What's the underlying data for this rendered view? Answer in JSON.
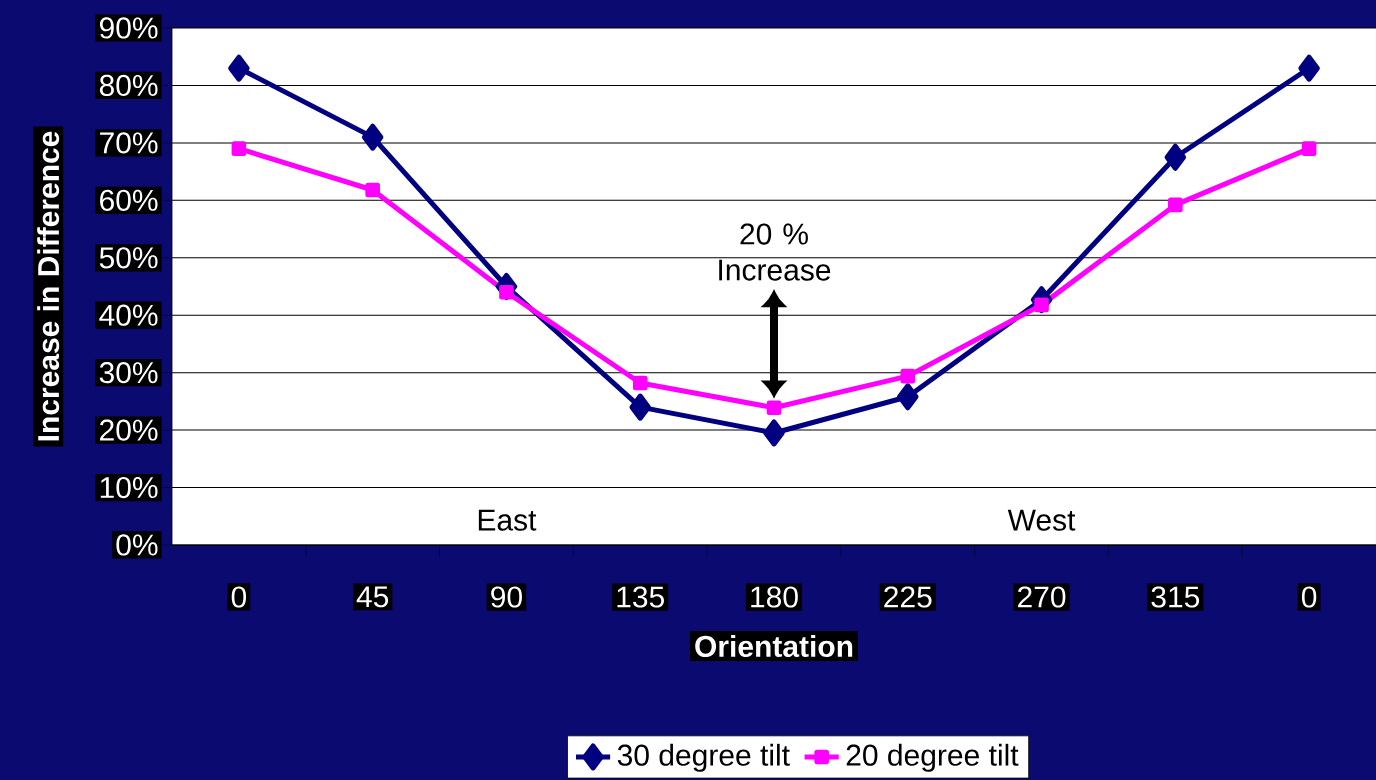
{
  "chart_data": {
    "type": "line",
    "xlabel": "Orientation",
    "ylabel": "Increase in Difference",
    "categories": [
      "0",
      "45",
      "90",
      "135",
      "180",
      "225",
      "270",
      "315",
      "0"
    ],
    "series": [
      {
        "name": "30 degree tilt",
        "color": "#000080",
        "marker": "diamond",
        "values": [
          83,
          71,
          45,
          24,
          19.5,
          25.8,
          42.7,
          67.5,
          83
        ]
      },
      {
        "name": "20 degree tilt",
        "color": "#ff00ff",
        "marker": "square",
        "values": [
          69,
          61.8,
          44,
          28.2,
          23.9,
          29.4,
          41.8,
          59.2,
          69
        ]
      }
    ],
    "ylim": [
      0,
      90
    ],
    "yticks": [
      {
        "value": 0,
        "label": "0%"
      },
      {
        "value": 10,
        "label": "10%"
      },
      {
        "value": 20,
        "label": "20%"
      },
      {
        "value": 30,
        "label": "30%"
      },
      {
        "value": 40,
        "label": "40%"
      },
      {
        "value": 50,
        "label": "50%"
      },
      {
        "value": 60,
        "label": "60%"
      },
      {
        "value": 70,
        "label": "70%"
      },
      {
        "value": 80,
        "label": "80%"
      },
      {
        "value": 90,
        "label": "90%"
      }
    ],
    "annotations": [
      "20 % Increase",
      "East",
      "West"
    ],
    "grid": "y",
    "legend": "bottom",
    "line_style": "solid"
  }
}
